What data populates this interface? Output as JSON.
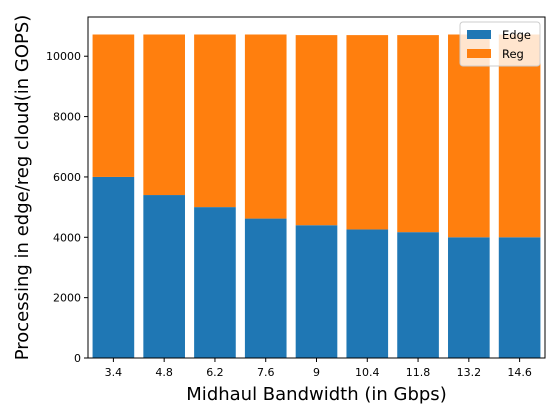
{
  "chart_data": {
    "type": "bar",
    "stacked": true,
    "title": "",
    "xlabel": "Midhaul Bandwidth (in Gbps)",
    "ylabel": "Processing in edge/reg cloud(in GOPS)",
    "categories": [
      "3.4",
      "4.8",
      "6.2",
      "7.6",
      "9",
      "10.4",
      "11.8",
      "13.2",
      "14.6"
    ],
    "series": [
      {
        "name": "Edge",
        "color": "#1f77b4",
        "values": [
          6000,
          5400,
          5000,
          4620,
          4400,
          4260,
          4170,
          4000,
          4000
        ]
      },
      {
        "name": "Reg",
        "color": "#ff7f0e",
        "values": [
          4720,
          5320,
          5720,
          6100,
          6300,
          6440,
          6530,
          6720,
          6720
        ]
      }
    ],
    "ylim": [
      0,
      11300
    ],
    "yticks": [
      0,
      2000,
      4000,
      6000,
      8000,
      10000
    ],
    "grid": false,
    "legend_position": "top-right"
  }
}
